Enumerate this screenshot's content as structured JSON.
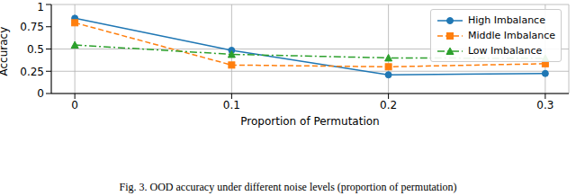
{
  "chart_data": {
    "type": "line",
    "title": "Fig. 3. OOD accuracy under different noise levels (proportion of permutation)",
    "x_label": "Proportion of Permutation",
    "y_label": "Accuracy",
    "x": [
      0,
      0.1,
      0.2,
      0.3
    ],
    "series": [
      {
        "name": "High Imbalance",
        "color": "#1f77b4",
        "marker": "circle",
        "line_style": "solid",
        "values": [
          0.845,
          0.485,
          0.21,
          0.225
        ]
      },
      {
        "name": "Middle Imbalance",
        "color": "#ff7f0e",
        "marker": "square",
        "line_style": "dashed",
        "values": [
          0.795,
          0.32,
          0.3,
          0.335
        ]
      },
      {
        "name": "Low Imbalance",
        "color": "#2ca02c",
        "marker": "triangle",
        "line_style": "dashdot",
        "values": [
          0.545,
          0.44,
          0.4,
          0.395
        ]
      }
    ],
    "xlim": [
      -0.015,
      0.315
    ],
    "xticks": [
      0,
      0.1,
      0.2,
      0.3
    ],
    "ylim": [
      0,
      1
    ],
    "yticks": [
      0,
      0.25,
      0.5,
      0.75,
      1
    ],
    "grid": true,
    "legend": "upper right"
  }
}
